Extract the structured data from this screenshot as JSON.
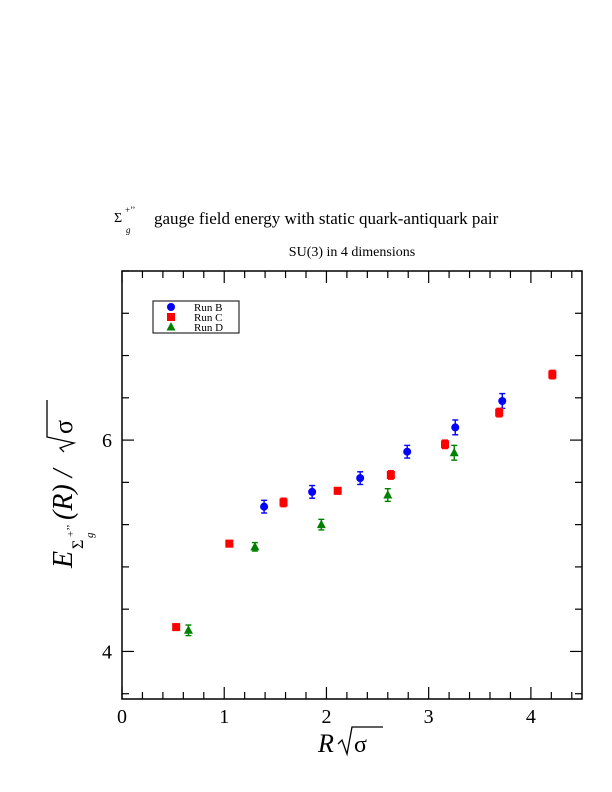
{
  "colors": {
    "run_b": "#0000ff",
    "run_c": "#ff0000",
    "run_d": "#008000",
    "axis": "#000000"
  },
  "chart_data": {
    "type": "scatter",
    "title_sub": "SU(3) in 4 dimensions",
    "title_main_text": "gauge field energy with static quark-antiquark pair",
    "title_symbol": "Σ",
    "title_symbol_super": "+’’",
    "title_symbol_sub": "g",
    "xlabel": "R",
    "ylabel_E": "E",
    "ylabel_rest": "(R) / ",
    "ylabel_sigma_sub": "Σ",
    "ylabel_sigma_sup": "+’’",
    "ylabel_g": "g",
    "sqrt_sigma": "σ",
    "xlim": [
      0,
      4.5
    ],
    "ylim": [
      3.55,
      7.6
    ],
    "x_ticks": [
      0,
      1,
      2,
      3,
      4
    ],
    "x_tick_labels": [
      "0",
      "1",
      "2",
      "3",
      "4"
    ],
    "y_ticks": [
      4,
      6
    ],
    "y_tick_labels": [
      "4",
      "6"
    ],
    "legend_position": "top-left",
    "series": [
      {
        "name": "Run B",
        "marker": "circle",
        "points": [
          {
            "x": 1.39,
            "y": 5.37,
            "err": 0.06
          },
          {
            "x": 1.86,
            "y": 5.51,
            "err": 0.06
          },
          {
            "x": 2.33,
            "y": 5.64,
            "err": 0.06
          },
          {
            "x": 2.79,
            "y": 5.89,
            "err": 0.06
          },
          {
            "x": 3.26,
            "y": 6.12,
            "err": 0.07
          },
          {
            "x": 3.72,
            "y": 6.37,
            "err": 0.07
          }
        ]
      },
      {
        "name": "Run C",
        "marker": "square",
        "points": [
          {
            "x": 0.53,
            "y": 4.23,
            "err": 0.03
          },
          {
            "x": 1.05,
            "y": 5.02,
            "err": 0.03
          },
          {
            "x": 1.58,
            "y": 5.41,
            "err": 0.04
          },
          {
            "x": 2.11,
            "y": 5.52,
            "err": 0.03
          },
          {
            "x": 2.63,
            "y": 5.67,
            "err": 0.04
          },
          {
            "x": 3.16,
            "y": 5.96,
            "err": 0.04
          },
          {
            "x": 3.69,
            "y": 6.26,
            "err": 0.04
          },
          {
            "x": 4.21,
            "y": 6.62,
            "err": 0.04
          }
        ]
      },
      {
        "name": "Run D",
        "marker": "triangle",
        "points": [
          {
            "x": 0.65,
            "y": 4.2,
            "err": 0.05
          },
          {
            "x": 1.3,
            "y": 4.99,
            "err": 0.04
          },
          {
            "x": 1.95,
            "y": 5.2,
            "err": 0.05
          },
          {
            "x": 2.6,
            "y": 5.48,
            "err": 0.06
          },
          {
            "x": 3.25,
            "y": 5.88,
            "err": 0.07
          }
        ]
      }
    ]
  }
}
